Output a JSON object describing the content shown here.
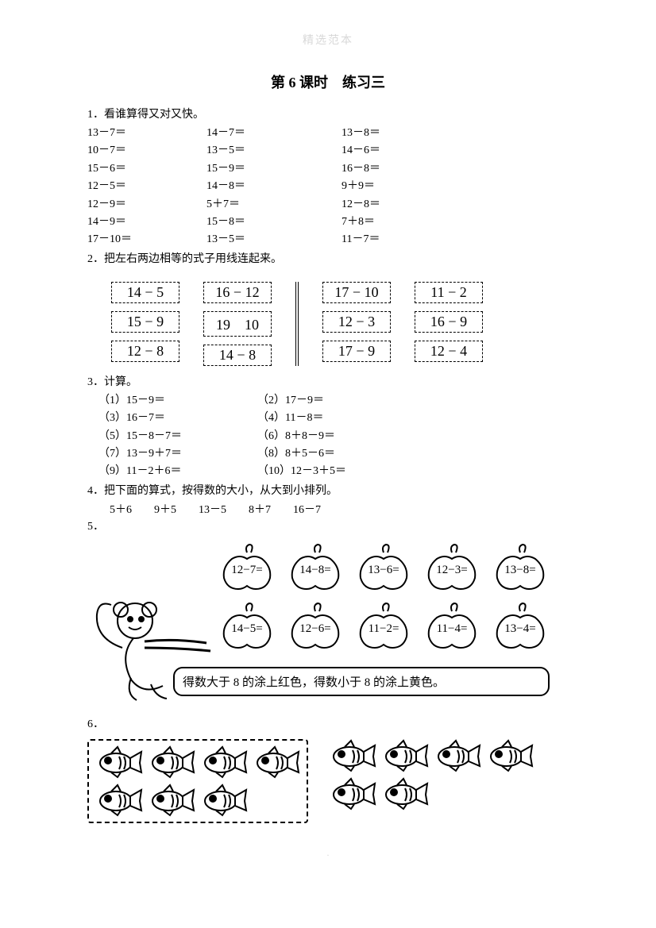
{
  "watermark": "精选范本",
  "title": "第 6 课时　练习三",
  "q1": {
    "prompt": "1．看谁算得又对又快。",
    "rows": [
      [
        "13－7＝",
        "14－7＝",
        "13－8＝"
      ],
      [
        "10－7＝",
        "13－5＝",
        "14－6＝"
      ],
      [
        "15－6＝",
        "15－9＝",
        "16－8＝"
      ],
      [
        "12－5＝",
        "14－8＝",
        "9＋9＝"
      ],
      [
        "12－9＝",
        "5＋7＝",
        "12－8＝"
      ],
      [
        "14－9＝",
        "15－8＝",
        "7＋8＝"
      ],
      [
        "17－10＝",
        "13－5＝",
        "11－7＝"
      ]
    ]
  },
  "q2": {
    "prompt": "2．把左右两边相等的式子用线连起来。",
    "left_col1": [
      "14 − 5",
      "15 − 9",
      "12 − 8"
    ],
    "left_col2": [
      "16 − 12",
      "19　10",
      "14 − 8"
    ],
    "right_col1": [
      "17 − 10",
      "12 − 3",
      "17 − 9"
    ],
    "right_col2": [
      "11 − 2",
      "16 − 9",
      "12 − 4"
    ]
  },
  "q3": {
    "prompt": "3．计算。",
    "items": [
      [
        "（1）15－9＝",
        "（2）17－9＝"
      ],
      [
        "（3）16－7＝",
        "（4）11－8＝"
      ],
      [
        "（5）15－8－7＝",
        "（6）8＋8－9＝"
      ],
      [
        "（7）13－9＋7＝",
        "（8）8＋5－6＝"
      ],
      [
        "（9）11－2＋6＝",
        "（10）12－3＋5＝"
      ]
    ]
  },
  "q4": {
    "prompt": "4．把下面的算式，按得数的大小，从大到小排列。",
    "exprs": [
      "5＋6",
      "9＋5",
      "13－5",
      "8＋7",
      "16－7"
    ]
  },
  "q5": {
    "label": "5．",
    "apples_row1": [
      "12−7=",
      "14−8=",
      "13−6=",
      "12−3=",
      "13−8="
    ],
    "apples_row2": [
      "14−5=",
      "12−6=",
      "11−2=",
      "11−4=",
      "13−4="
    ],
    "speech": "得数大于 8 的涂上红色，得数小于 8 的涂上黄色。"
  },
  "q6": {
    "label": "6．",
    "left_fish_rows": [
      4,
      3
    ],
    "right_fish_rows": [
      4,
      2
    ]
  },
  "colors": {
    "text": "#000000",
    "background": "#ffffff",
    "watermark": "#d8d8d8",
    "stroke": "#000000"
  }
}
